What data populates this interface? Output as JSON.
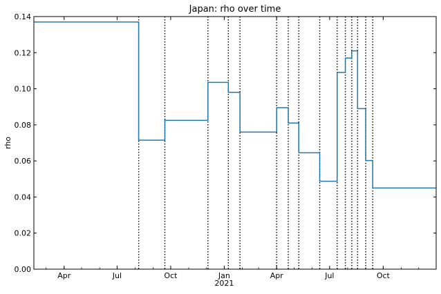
{
  "chart_data": {
    "type": "line",
    "title": "Japan: rho over time",
    "xlabel": "",
    "ylabel": "rho",
    "x_axis": {
      "type": "date",
      "range": [
        "2020-02-09",
        "2021-12-31"
      ],
      "ticks": [
        {
          "date": "2020-04-01",
          "label": "Apr"
        },
        {
          "date": "2020-07-01",
          "label": "Jul"
        },
        {
          "date": "2020-10-01",
          "label": "Oct"
        },
        {
          "date": "2021-01-01",
          "label": "Jan",
          "sublabel": "2021"
        },
        {
          "date": "2021-04-01",
          "label": "Apr"
        },
        {
          "date": "2021-07-01",
          "label": "Jul"
        },
        {
          "date": "2021-10-01",
          "label": "Oct"
        }
      ]
    },
    "y_axis": {
      "range": [
        0.0,
        0.14
      ],
      "ticks": [
        0.0,
        0.02,
        0.04,
        0.06,
        0.08,
        0.1,
        0.12,
        0.14
      ],
      "tick_format": 2
    },
    "grid": false,
    "series": [
      {
        "color": "#1f77b4",
        "step": "post",
        "points": [
          {
            "x": "2020-02-09",
            "y": 0.137
          },
          {
            "x": "2020-08-07",
            "y": 0.0715
          },
          {
            "x": "2020-09-21",
            "y": 0.0825
          },
          {
            "x": "2020-12-04",
            "y": 0.1035
          },
          {
            "x": "2021-01-08",
            "y": 0.098
          },
          {
            "x": "2021-01-28",
            "y": 0.076
          },
          {
            "x": "2021-04-01",
            "y": 0.0895
          },
          {
            "x": "2021-04-21",
            "y": 0.081
          },
          {
            "x": "2021-05-09",
            "y": 0.0645
          },
          {
            "x": "2021-06-14",
            "y": 0.0487
          },
          {
            "x": "2021-07-14",
            "y": 0.109
          },
          {
            "x": "2021-07-28",
            "y": 0.117
          },
          {
            "x": "2021-08-08",
            "y": 0.121
          },
          {
            "x": "2021-08-18",
            "y": 0.089
          },
          {
            "x": "2021-09-01",
            "y": 0.0602
          },
          {
            "x": "2021-09-13",
            "y": 0.045
          },
          {
            "x": "2021-12-31",
            "y": 0.045
          }
        ]
      }
    ],
    "vertical_lines": {
      "style": "dotted",
      "color": "#000000",
      "dates": [
        "2020-08-07",
        "2020-09-21",
        "2020-12-04",
        "2021-01-08",
        "2021-01-28",
        "2021-04-01",
        "2021-04-21",
        "2021-05-09",
        "2021-06-14",
        "2021-07-14",
        "2021-07-28",
        "2021-08-08",
        "2021-08-18",
        "2021-09-01",
        "2021-09-13"
      ]
    }
  }
}
